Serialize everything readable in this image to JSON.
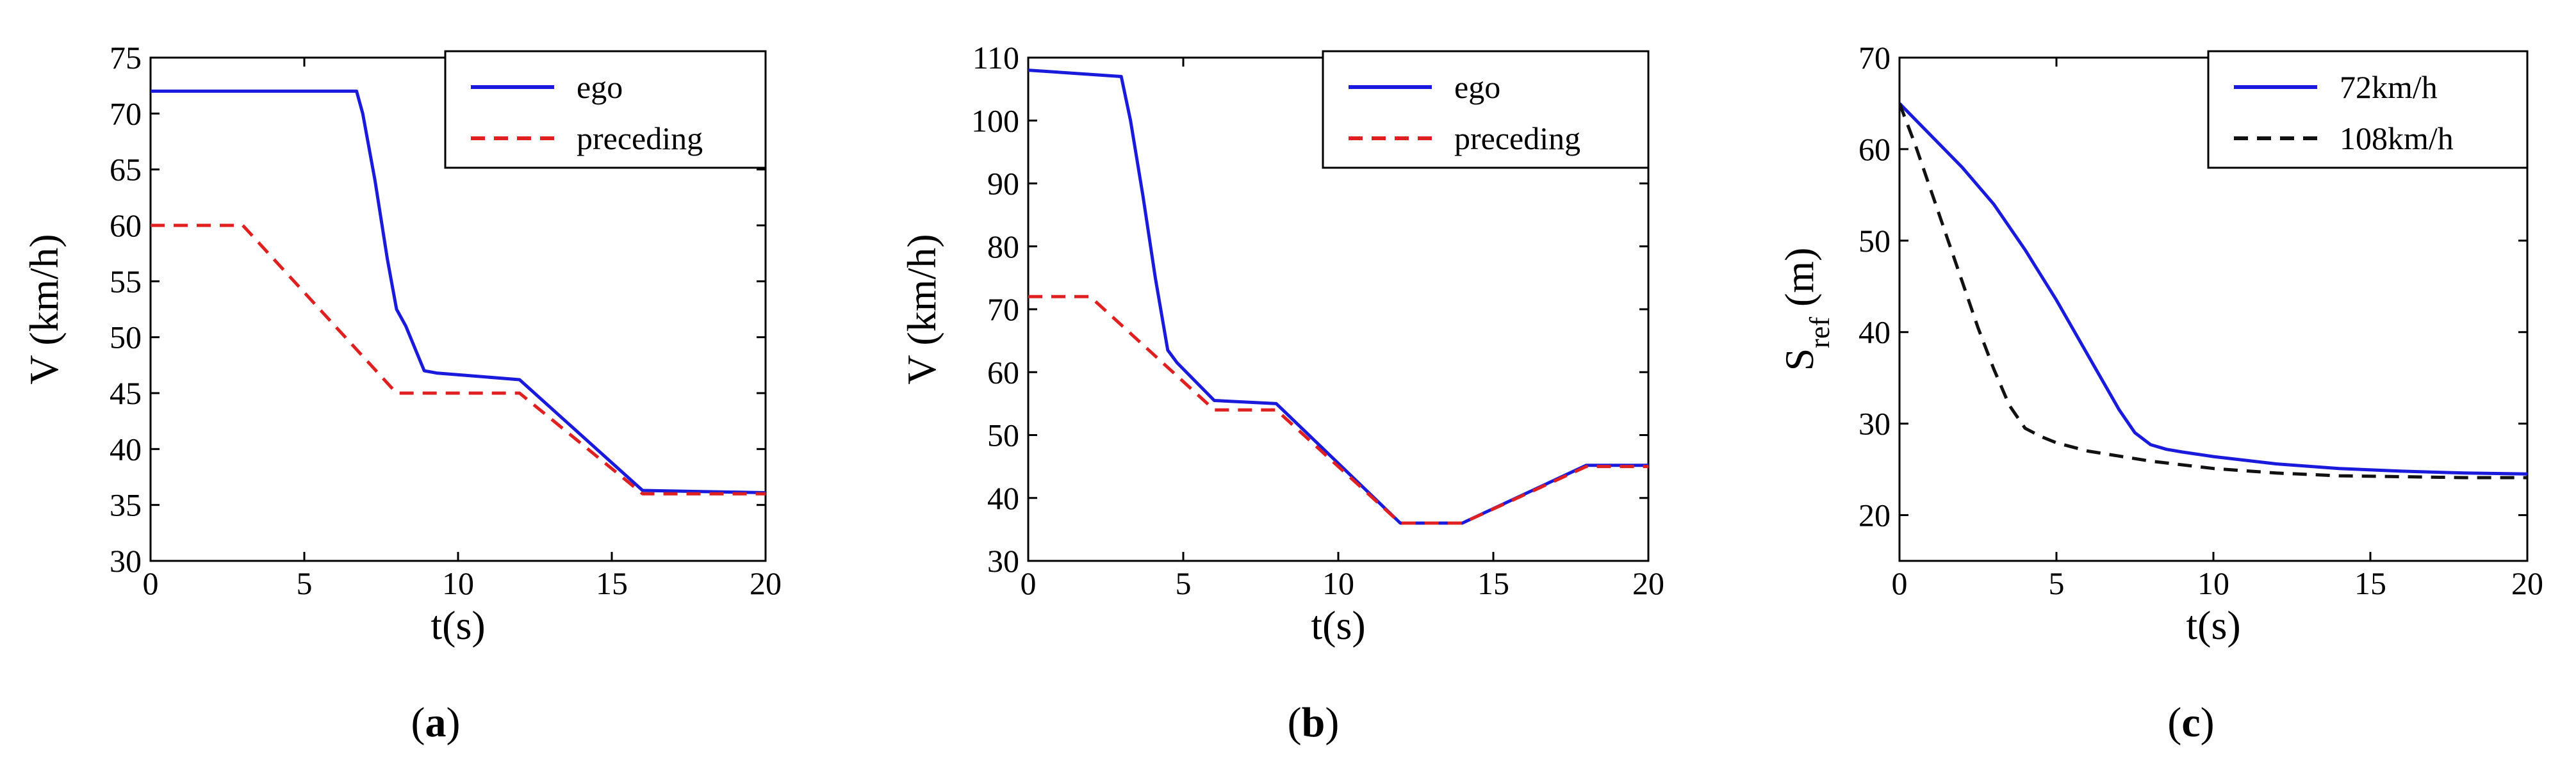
{
  "chart_data": [
    {
      "type": "line",
      "panel_label": "a",
      "xlabel": "t(s)",
      "ylabel": "V (km/h)",
      "xlim": [
        0,
        20
      ],
      "ylim": [
        30,
        75
      ],
      "xticks": [
        0,
        5,
        10,
        15,
        20
      ],
      "yticks": [
        30,
        35,
        40,
        45,
        50,
        55,
        60,
        65,
        70,
        75
      ],
      "legend_position": "top-right",
      "series": [
        {
          "name": "ego",
          "color": "#1a1adc",
          "style": "solid",
          "x": [
            0,
            6.7,
            6.9,
            7.3,
            7.7,
            8.0,
            8.3,
            8.9,
            9.3,
            12.0,
            16.0,
            20.0
          ],
          "y": [
            72,
            72,
            70,
            64,
            57,
            52.5,
            51,
            47,
            46.8,
            46.2,
            36.3,
            36.1
          ]
        },
        {
          "name": "preceding",
          "color": "#e02020",
          "style": "dashed",
          "x": [
            0,
            3,
            8,
            12,
            16,
            20
          ],
          "y": [
            60,
            60,
            45,
            45,
            36,
            36
          ]
        }
      ]
    },
    {
      "type": "line",
      "panel_label": "b",
      "xlabel": "t(s)",
      "ylabel": "V (km/h)",
      "xlim": [
        0,
        20
      ],
      "ylim": [
        30,
        110
      ],
      "xticks": [
        0,
        5,
        10,
        15,
        20
      ],
      "yticks": [
        30,
        40,
        50,
        60,
        70,
        80,
        90,
        100,
        110
      ],
      "legend_position": "top-right",
      "series": [
        {
          "name": "ego",
          "color": "#1a1adc",
          "style": "solid",
          "x": [
            0,
            3,
            3.3,
            3.7,
            4.1,
            4.5,
            4.8,
            6,
            8,
            12,
            14,
            18,
            20
          ],
          "y": [
            108,
            107,
            100,
            88,
            75,
            63.5,
            61.5,
            55.5,
            55,
            36,
            36,
            45.2,
            45.2
          ]
        },
        {
          "name": "preceding",
          "color": "#e02020",
          "style": "dashed",
          "x": [
            0,
            2,
            6,
            8,
            12,
            14,
            18,
            20
          ],
          "y": [
            72,
            72,
            54,
            54,
            36,
            36,
            45,
            45
          ]
        }
      ]
    },
    {
      "type": "line",
      "panel_label": "c",
      "xlabel": "t(s)",
      "ylabel_main": "S",
      "ylabel_sub": "ref",
      "ylabel_unit": " (m)",
      "xlim": [
        0,
        20
      ],
      "ylim": [
        15,
        70
      ],
      "xticks": [
        0,
        5,
        10,
        15,
        20
      ],
      "yticks": [
        20,
        30,
        40,
        50,
        60,
        70
      ],
      "legend_position": "top-right",
      "series": [
        {
          "name": "72km/h",
          "color": "#1a1adc",
          "style": "solid",
          "x": [
            0,
            1,
            2,
            3,
            4,
            5,
            6,
            7,
            7.5,
            8,
            8.5,
            9,
            10,
            12,
            14,
            16,
            18,
            20
          ],
          "y": [
            65,
            61.5,
            58,
            54,
            49,
            43.5,
            37.5,
            31.5,
            29,
            27.7,
            27.2,
            26.9,
            26.4,
            25.6,
            25.1,
            24.8,
            24.6,
            24.5
          ]
        },
        {
          "name": "108km/h",
          "color": "#111111",
          "style": "dashed",
          "x": [
            0,
            0.5,
            1,
            1.5,
            2,
            2.5,
            3,
            3.5,
            4,
            4.5,
            5,
            6,
            8,
            10,
            12,
            14,
            16,
            18,
            20
          ],
          "y": [
            65,
            60.5,
            55.5,
            50.5,
            45.5,
            40.5,
            36,
            32,
            29.5,
            28.6,
            27.9,
            27,
            25.9,
            25.1,
            24.6,
            24.3,
            24.2,
            24.1,
            24.1
          ]
        }
      ]
    }
  ]
}
